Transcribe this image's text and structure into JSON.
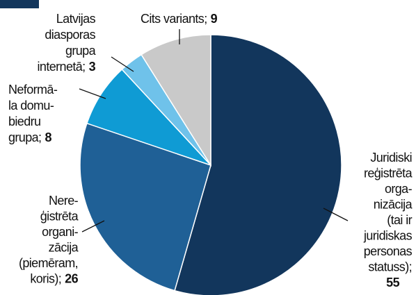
{
  "chart_data": {
    "type": "pie",
    "categories": [
      [
        "Juridiski",
        "reģistrēta",
        "orga-",
        "nizācija",
        "(tai ir",
        "juridiskas",
        "personas",
        "statuss);"
      ],
      [
        "Nere-",
        "ģistrēta",
        "organi-",
        "zācija",
        "(piemēram,",
        "koris);"
      ],
      [
        "Neformā-",
        "la domu-",
        "biedru",
        "grupa;"
      ],
      [
        "Latvijas",
        "diasporas",
        "grupa",
        "internetā;"
      ],
      [
        "Cits variants;"
      ]
    ],
    "values": [
      55,
      26,
      8,
      3,
      9
    ],
    "colors": [
      "#12365c",
      "#1f6096",
      "#0f9bd4",
      "#6fc2ea",
      "#c9c9c9"
    ]
  }
}
